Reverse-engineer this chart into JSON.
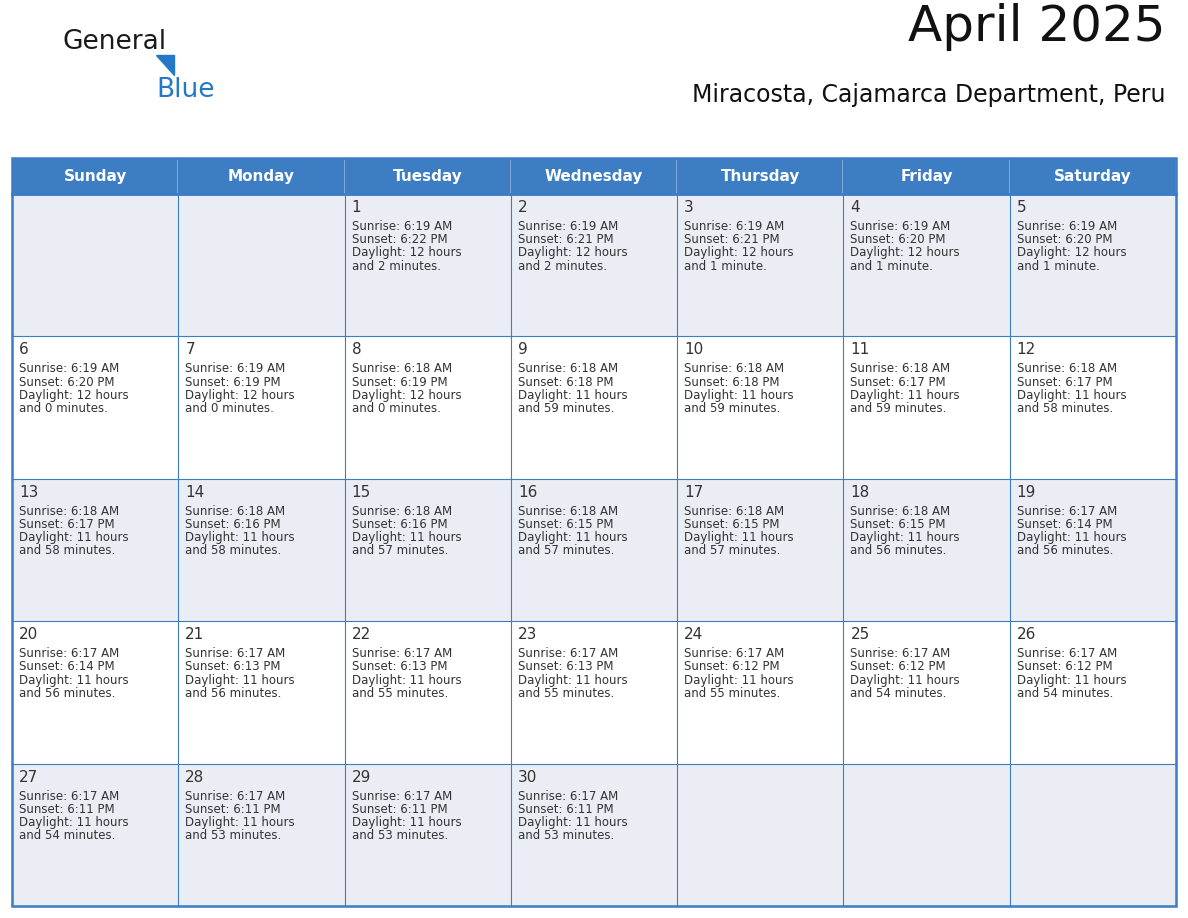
{
  "title": "April 2025",
  "subtitle": "Miracosta, Cajamarca Department, Peru",
  "header_bg": "#3C7DC4",
  "header_text_color": "#FFFFFF",
  "cell_bg_light": "#EAEEF4",
  "cell_bg_white": "#FFFFFF",
  "border_color": "#3C7DC4",
  "text_color": "#333333",
  "days_of_week": [
    "Sunday",
    "Monday",
    "Tuesday",
    "Wednesday",
    "Thursday",
    "Friday",
    "Saturday"
  ],
  "weeks": [
    [
      {
        "day": "",
        "sunrise": "",
        "sunset": "",
        "daylight": ""
      },
      {
        "day": "",
        "sunrise": "",
        "sunset": "",
        "daylight": ""
      },
      {
        "day": "1",
        "sunrise": "6:19 AM",
        "sunset": "6:22 PM",
        "daylight": "12 hours and 2 minutes."
      },
      {
        "day": "2",
        "sunrise": "6:19 AM",
        "sunset": "6:21 PM",
        "daylight": "12 hours and 2 minutes."
      },
      {
        "day": "3",
        "sunrise": "6:19 AM",
        "sunset": "6:21 PM",
        "daylight": "12 hours and 1 minute."
      },
      {
        "day": "4",
        "sunrise": "6:19 AM",
        "sunset": "6:20 PM",
        "daylight": "12 hours and 1 minute."
      },
      {
        "day": "5",
        "sunrise": "6:19 AM",
        "sunset": "6:20 PM",
        "daylight": "12 hours and 1 minute."
      }
    ],
    [
      {
        "day": "6",
        "sunrise": "6:19 AM",
        "sunset": "6:20 PM",
        "daylight": "12 hours and 0 minutes."
      },
      {
        "day": "7",
        "sunrise": "6:19 AM",
        "sunset": "6:19 PM",
        "daylight": "12 hours and 0 minutes."
      },
      {
        "day": "8",
        "sunrise": "6:18 AM",
        "sunset": "6:19 PM",
        "daylight": "12 hours and 0 minutes."
      },
      {
        "day": "9",
        "sunrise": "6:18 AM",
        "sunset": "6:18 PM",
        "daylight": "11 hours and 59 minutes."
      },
      {
        "day": "10",
        "sunrise": "6:18 AM",
        "sunset": "6:18 PM",
        "daylight": "11 hours and 59 minutes."
      },
      {
        "day": "11",
        "sunrise": "6:18 AM",
        "sunset": "6:17 PM",
        "daylight": "11 hours and 59 minutes."
      },
      {
        "day": "12",
        "sunrise": "6:18 AM",
        "sunset": "6:17 PM",
        "daylight": "11 hours and 58 minutes."
      }
    ],
    [
      {
        "day": "13",
        "sunrise": "6:18 AM",
        "sunset": "6:17 PM",
        "daylight": "11 hours and 58 minutes."
      },
      {
        "day": "14",
        "sunrise": "6:18 AM",
        "sunset": "6:16 PM",
        "daylight": "11 hours and 58 minutes."
      },
      {
        "day": "15",
        "sunrise": "6:18 AM",
        "sunset": "6:16 PM",
        "daylight": "11 hours and 57 minutes."
      },
      {
        "day": "16",
        "sunrise": "6:18 AM",
        "sunset": "6:15 PM",
        "daylight": "11 hours and 57 minutes."
      },
      {
        "day": "17",
        "sunrise": "6:18 AM",
        "sunset": "6:15 PM",
        "daylight": "11 hours and 57 minutes."
      },
      {
        "day": "18",
        "sunrise": "6:18 AM",
        "sunset": "6:15 PM",
        "daylight": "11 hours and 56 minutes."
      },
      {
        "day": "19",
        "sunrise": "6:17 AM",
        "sunset": "6:14 PM",
        "daylight": "11 hours and 56 minutes."
      }
    ],
    [
      {
        "day": "20",
        "sunrise": "6:17 AM",
        "sunset": "6:14 PM",
        "daylight": "11 hours and 56 minutes."
      },
      {
        "day": "21",
        "sunrise": "6:17 AM",
        "sunset": "6:13 PM",
        "daylight": "11 hours and 56 minutes."
      },
      {
        "day": "22",
        "sunrise": "6:17 AM",
        "sunset": "6:13 PM",
        "daylight": "11 hours and 55 minutes."
      },
      {
        "day": "23",
        "sunrise": "6:17 AM",
        "sunset": "6:13 PM",
        "daylight": "11 hours and 55 minutes."
      },
      {
        "day": "24",
        "sunrise": "6:17 AM",
        "sunset": "6:12 PM",
        "daylight": "11 hours and 55 minutes."
      },
      {
        "day": "25",
        "sunrise": "6:17 AM",
        "sunset": "6:12 PM",
        "daylight": "11 hours and 54 minutes."
      },
      {
        "day": "26",
        "sunrise": "6:17 AM",
        "sunset": "6:12 PM",
        "daylight": "11 hours and 54 minutes."
      }
    ],
    [
      {
        "day": "27",
        "sunrise": "6:17 AM",
        "sunset": "6:11 PM",
        "daylight": "11 hours and 54 minutes."
      },
      {
        "day": "28",
        "sunrise": "6:17 AM",
        "sunset": "6:11 PM",
        "daylight": "11 hours and 53 minutes."
      },
      {
        "day": "29",
        "sunrise": "6:17 AM",
        "sunset": "6:11 PM",
        "daylight": "11 hours and 53 minutes."
      },
      {
        "day": "30",
        "sunrise": "6:17 AM",
        "sunset": "6:11 PM",
        "daylight": "11 hours and 53 minutes."
      },
      {
        "day": "",
        "sunrise": "",
        "sunset": "",
        "daylight": ""
      },
      {
        "day": "",
        "sunrise": "",
        "sunset": "",
        "daylight": ""
      },
      {
        "day": "",
        "sunrise": "",
        "sunset": "",
        "daylight": ""
      }
    ]
  ],
  "logo_text1": "General",
  "logo_text2": "Blue",
  "logo_color1": "#1a1a1a",
  "logo_color2": "#2478C8",
  "logo_triangle_color": "#2478C8",
  "title_fontsize": 36,
  "subtitle_fontsize": 17,
  "header_fontsize": 11,
  "day_num_fontsize": 11,
  "cell_text_fontsize": 8.5
}
